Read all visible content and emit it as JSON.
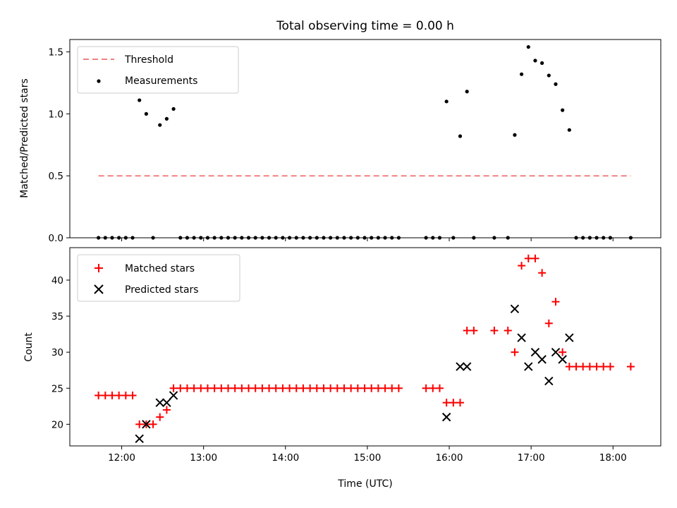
{
  "title": "Total observing time = 0.00 h",
  "x_tick_labels": [
    "12:00",
    "13:00",
    "14:00",
    "15:00",
    "16:00",
    "17:00",
    "18:00"
  ],
  "chart_data": [
    {
      "type": "scatter",
      "ylabel": "Matched/Predicted stars",
      "xlabel": "",
      "ylim": [
        0,
        1.6
      ],
      "xlim": [
        "11:22",
        "18:35"
      ],
      "yticks": [
        "0.0",
        "0.5",
        "1.0",
        "1.5"
      ],
      "legend": {
        "placement": "top-left",
        "entries": [
          "Threshold",
          "Measurements"
        ]
      },
      "series": [
        {
          "name": "Threshold",
          "kind": "dashed-line",
          "color": "#f08080",
          "x": [
            "11:43",
            "18:13"
          ],
          "y": [
            0.5,
            0.5
          ]
        },
        {
          "name": "Measurements",
          "kind": "dot",
          "color": "#000000",
          "points": [
            [
              "11:43",
              0.0
            ],
            [
              "11:48",
              0.0
            ],
            [
              "11:53",
              0.0
            ],
            [
              "11:58",
              0.0
            ],
            [
              "12:03",
              0.0
            ],
            [
              "12:08",
              0.0
            ],
            [
              "12:13",
              1.11
            ],
            [
              "12:18",
              1.0
            ],
            [
              "12:23",
              0.0
            ],
            [
              "12:28",
              0.91
            ],
            [
              "12:33",
              0.96
            ],
            [
              "12:38",
              1.04
            ],
            [
              "12:43",
              0.0
            ],
            [
              "12:48",
              0.0
            ],
            [
              "12:53",
              0.0
            ],
            [
              "12:58",
              0.0
            ],
            [
              "13:03",
              0.0
            ],
            [
              "13:08",
              0.0
            ],
            [
              "13:13",
              0.0
            ],
            [
              "13:18",
              0.0
            ],
            [
              "13:23",
              0.0
            ],
            [
              "13:28",
              0.0
            ],
            [
              "13:33",
              0.0
            ],
            [
              "13:38",
              0.0
            ],
            [
              "13:43",
              0.0
            ],
            [
              "13:48",
              0.0
            ],
            [
              "13:53",
              0.0
            ],
            [
              "13:58",
              0.0
            ],
            [
              "14:03",
              0.0
            ],
            [
              "14:08",
              0.0
            ],
            [
              "14:13",
              0.0
            ],
            [
              "14:18",
              0.0
            ],
            [
              "14:23",
              0.0
            ],
            [
              "14:28",
              0.0
            ],
            [
              "14:33",
              0.0
            ],
            [
              "14:38",
              0.0
            ],
            [
              "14:43",
              0.0
            ],
            [
              "14:48",
              0.0
            ],
            [
              "14:53",
              0.0
            ],
            [
              "14:58",
              0.0
            ],
            [
              "15:03",
              0.0
            ],
            [
              "15:08",
              0.0
            ],
            [
              "15:13",
              0.0
            ],
            [
              "15:18",
              0.0
            ],
            [
              "15:23",
              0.0
            ],
            [
              "15:43",
              0.0
            ],
            [
              "15:48",
              0.0
            ],
            [
              "15:53",
              0.0
            ],
            [
              "15:58",
              1.1
            ],
            [
              "16:03",
              0.0
            ],
            [
              "16:08",
              0.82
            ],
            [
              "16:13",
              1.18
            ],
            [
              "16:18",
              0.0
            ],
            [
              "16:33",
              0.0
            ],
            [
              "16:43",
              0.0
            ],
            [
              "16:48",
              0.83
            ],
            [
              "16:53",
              1.32
            ],
            [
              "16:58",
              1.54
            ],
            [
              "17:03",
              1.43
            ],
            [
              "17:08",
              1.41
            ],
            [
              "17:13",
              1.31
            ],
            [
              "17:18",
              1.24
            ],
            [
              "17:23",
              1.03
            ],
            [
              "17:28",
              0.87
            ],
            [
              "17:33",
              0.0
            ],
            [
              "17:38",
              0.0
            ],
            [
              "17:43",
              0.0
            ],
            [
              "17:48",
              0.0
            ],
            [
              "17:53",
              0.0
            ],
            [
              "17:58",
              0.0
            ],
            [
              "18:13",
              0.0
            ]
          ]
        }
      ]
    },
    {
      "type": "scatter",
      "ylabel": "Count",
      "xlabel": "Time (UTC)",
      "ylim": [
        17,
        44.5
      ],
      "xlim": [
        "11:22",
        "18:35"
      ],
      "yticks": [
        "20",
        "25",
        "30",
        "35",
        "40"
      ],
      "legend": {
        "placement": "top-left",
        "entries": [
          "Matched stars",
          "Predicted stars"
        ]
      },
      "series": [
        {
          "name": "Matched stars",
          "kind": "plus",
          "color": "#ff0000",
          "points": [
            [
              "11:43",
              24
            ],
            [
              "11:48",
              24
            ],
            [
              "11:53",
              24
            ],
            [
              "11:58",
              24
            ],
            [
              "12:03",
              24
            ],
            [
              "12:08",
              24
            ],
            [
              "12:13",
              20
            ],
            [
              "12:18",
              20
            ],
            [
              "12:23",
              20
            ],
            [
              "12:28",
              21
            ],
            [
              "12:33",
              22
            ],
            [
              "12:38",
              25
            ],
            [
              "12:43",
              25
            ],
            [
              "12:48",
              25
            ],
            [
              "12:53",
              25
            ],
            [
              "12:58",
              25
            ],
            [
              "13:03",
              25
            ],
            [
              "13:08",
              25
            ],
            [
              "13:13",
              25
            ],
            [
              "13:18",
              25
            ],
            [
              "13:23",
              25
            ],
            [
              "13:28",
              25
            ],
            [
              "13:33",
              25
            ],
            [
              "13:38",
              25
            ],
            [
              "13:43",
              25
            ],
            [
              "13:48",
              25
            ],
            [
              "13:53",
              25
            ],
            [
              "13:58",
              25
            ],
            [
              "14:03",
              25
            ],
            [
              "14:08",
              25
            ],
            [
              "14:13",
              25
            ],
            [
              "14:18",
              25
            ],
            [
              "14:23",
              25
            ],
            [
              "14:28",
              25
            ],
            [
              "14:33",
              25
            ],
            [
              "14:38",
              25
            ],
            [
              "14:43",
              25
            ],
            [
              "14:48",
              25
            ],
            [
              "14:53",
              25
            ],
            [
              "14:58",
              25
            ],
            [
              "15:03",
              25
            ],
            [
              "15:08",
              25
            ],
            [
              "15:13",
              25
            ],
            [
              "15:18",
              25
            ],
            [
              "15:23",
              25
            ],
            [
              "15:43",
              25
            ],
            [
              "15:48",
              25
            ],
            [
              "15:53",
              25
            ],
            [
              "15:58",
              23
            ],
            [
              "16:03",
              23
            ],
            [
              "16:08",
              23
            ],
            [
              "16:13",
              33
            ],
            [
              "16:18",
              33
            ],
            [
              "16:33",
              33
            ],
            [
              "16:43",
              33
            ],
            [
              "16:48",
              30
            ],
            [
              "16:53",
              42
            ],
            [
              "16:58",
              43
            ],
            [
              "17:03",
              43
            ],
            [
              "17:08",
              41
            ],
            [
              "17:13",
              34
            ],
            [
              "17:18",
              37
            ],
            [
              "17:23",
              30
            ],
            [
              "17:28",
              28
            ],
            [
              "17:33",
              28
            ],
            [
              "17:38",
              28
            ],
            [
              "17:43",
              28
            ],
            [
              "17:48",
              28
            ],
            [
              "17:53",
              28
            ],
            [
              "17:58",
              28
            ],
            [
              "18:13",
              28
            ]
          ]
        },
        {
          "name": "Predicted stars",
          "kind": "cross",
          "color": "#000000",
          "points": [
            [
              "12:13",
              18
            ],
            [
              "12:18",
              20
            ],
            [
              "12:28",
              23
            ],
            [
              "12:33",
              23
            ],
            [
              "12:38",
              24
            ],
            [
              "15:58",
              21
            ],
            [
              "16:08",
              28
            ],
            [
              "16:13",
              28
            ],
            [
              "16:48",
              36
            ],
            [
              "16:53",
              32
            ],
            [
              "16:58",
              28
            ],
            [
              "17:03",
              30
            ],
            [
              "17:08",
              29
            ],
            [
              "17:13",
              26
            ],
            [
              "17:18",
              30
            ],
            [
              "17:23",
              29
            ],
            [
              "17:28",
              32
            ]
          ]
        }
      ]
    }
  ]
}
